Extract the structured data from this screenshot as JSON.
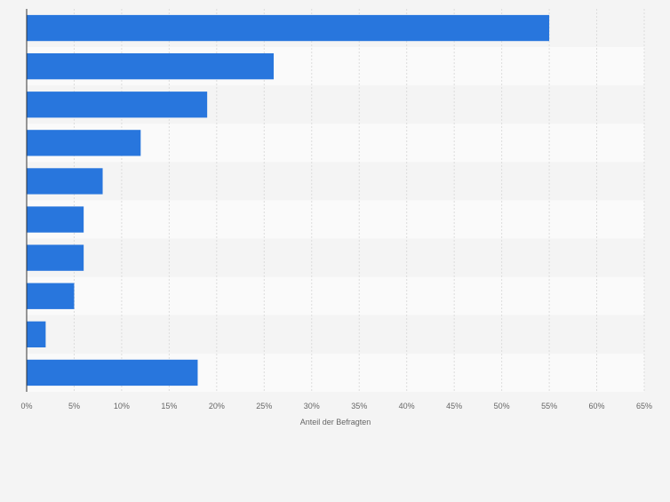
{
  "chart_data": {
    "type": "bar",
    "orientation": "horizontal",
    "categories": [
      "",
      "",
      "",
      "",
      "",
      "",
      "",
      "",
      "",
      ""
    ],
    "values": [
      55,
      26,
      19,
      12,
      8,
      6,
      6,
      5,
      2,
      18
    ],
    "xlabel": "Anteil der Befragten",
    "ylabel": "",
    "xlim": [
      0,
      65
    ],
    "xticks": [
      0,
      5,
      10,
      15,
      20,
      25,
      30,
      35,
      40,
      45,
      50,
      55,
      60,
      65
    ],
    "xtick_labels": [
      "0%",
      "5%",
      "10%",
      "15%",
      "20%",
      "25%",
      "30%",
      "35%",
      "40%",
      "45%",
      "50%",
      "55%",
      "60%",
      "65%"
    ],
    "grid": true,
    "bar_color": "#2876dd",
    "band_colors": [
      "#f4f4f4",
      "#fafafa"
    ]
  }
}
